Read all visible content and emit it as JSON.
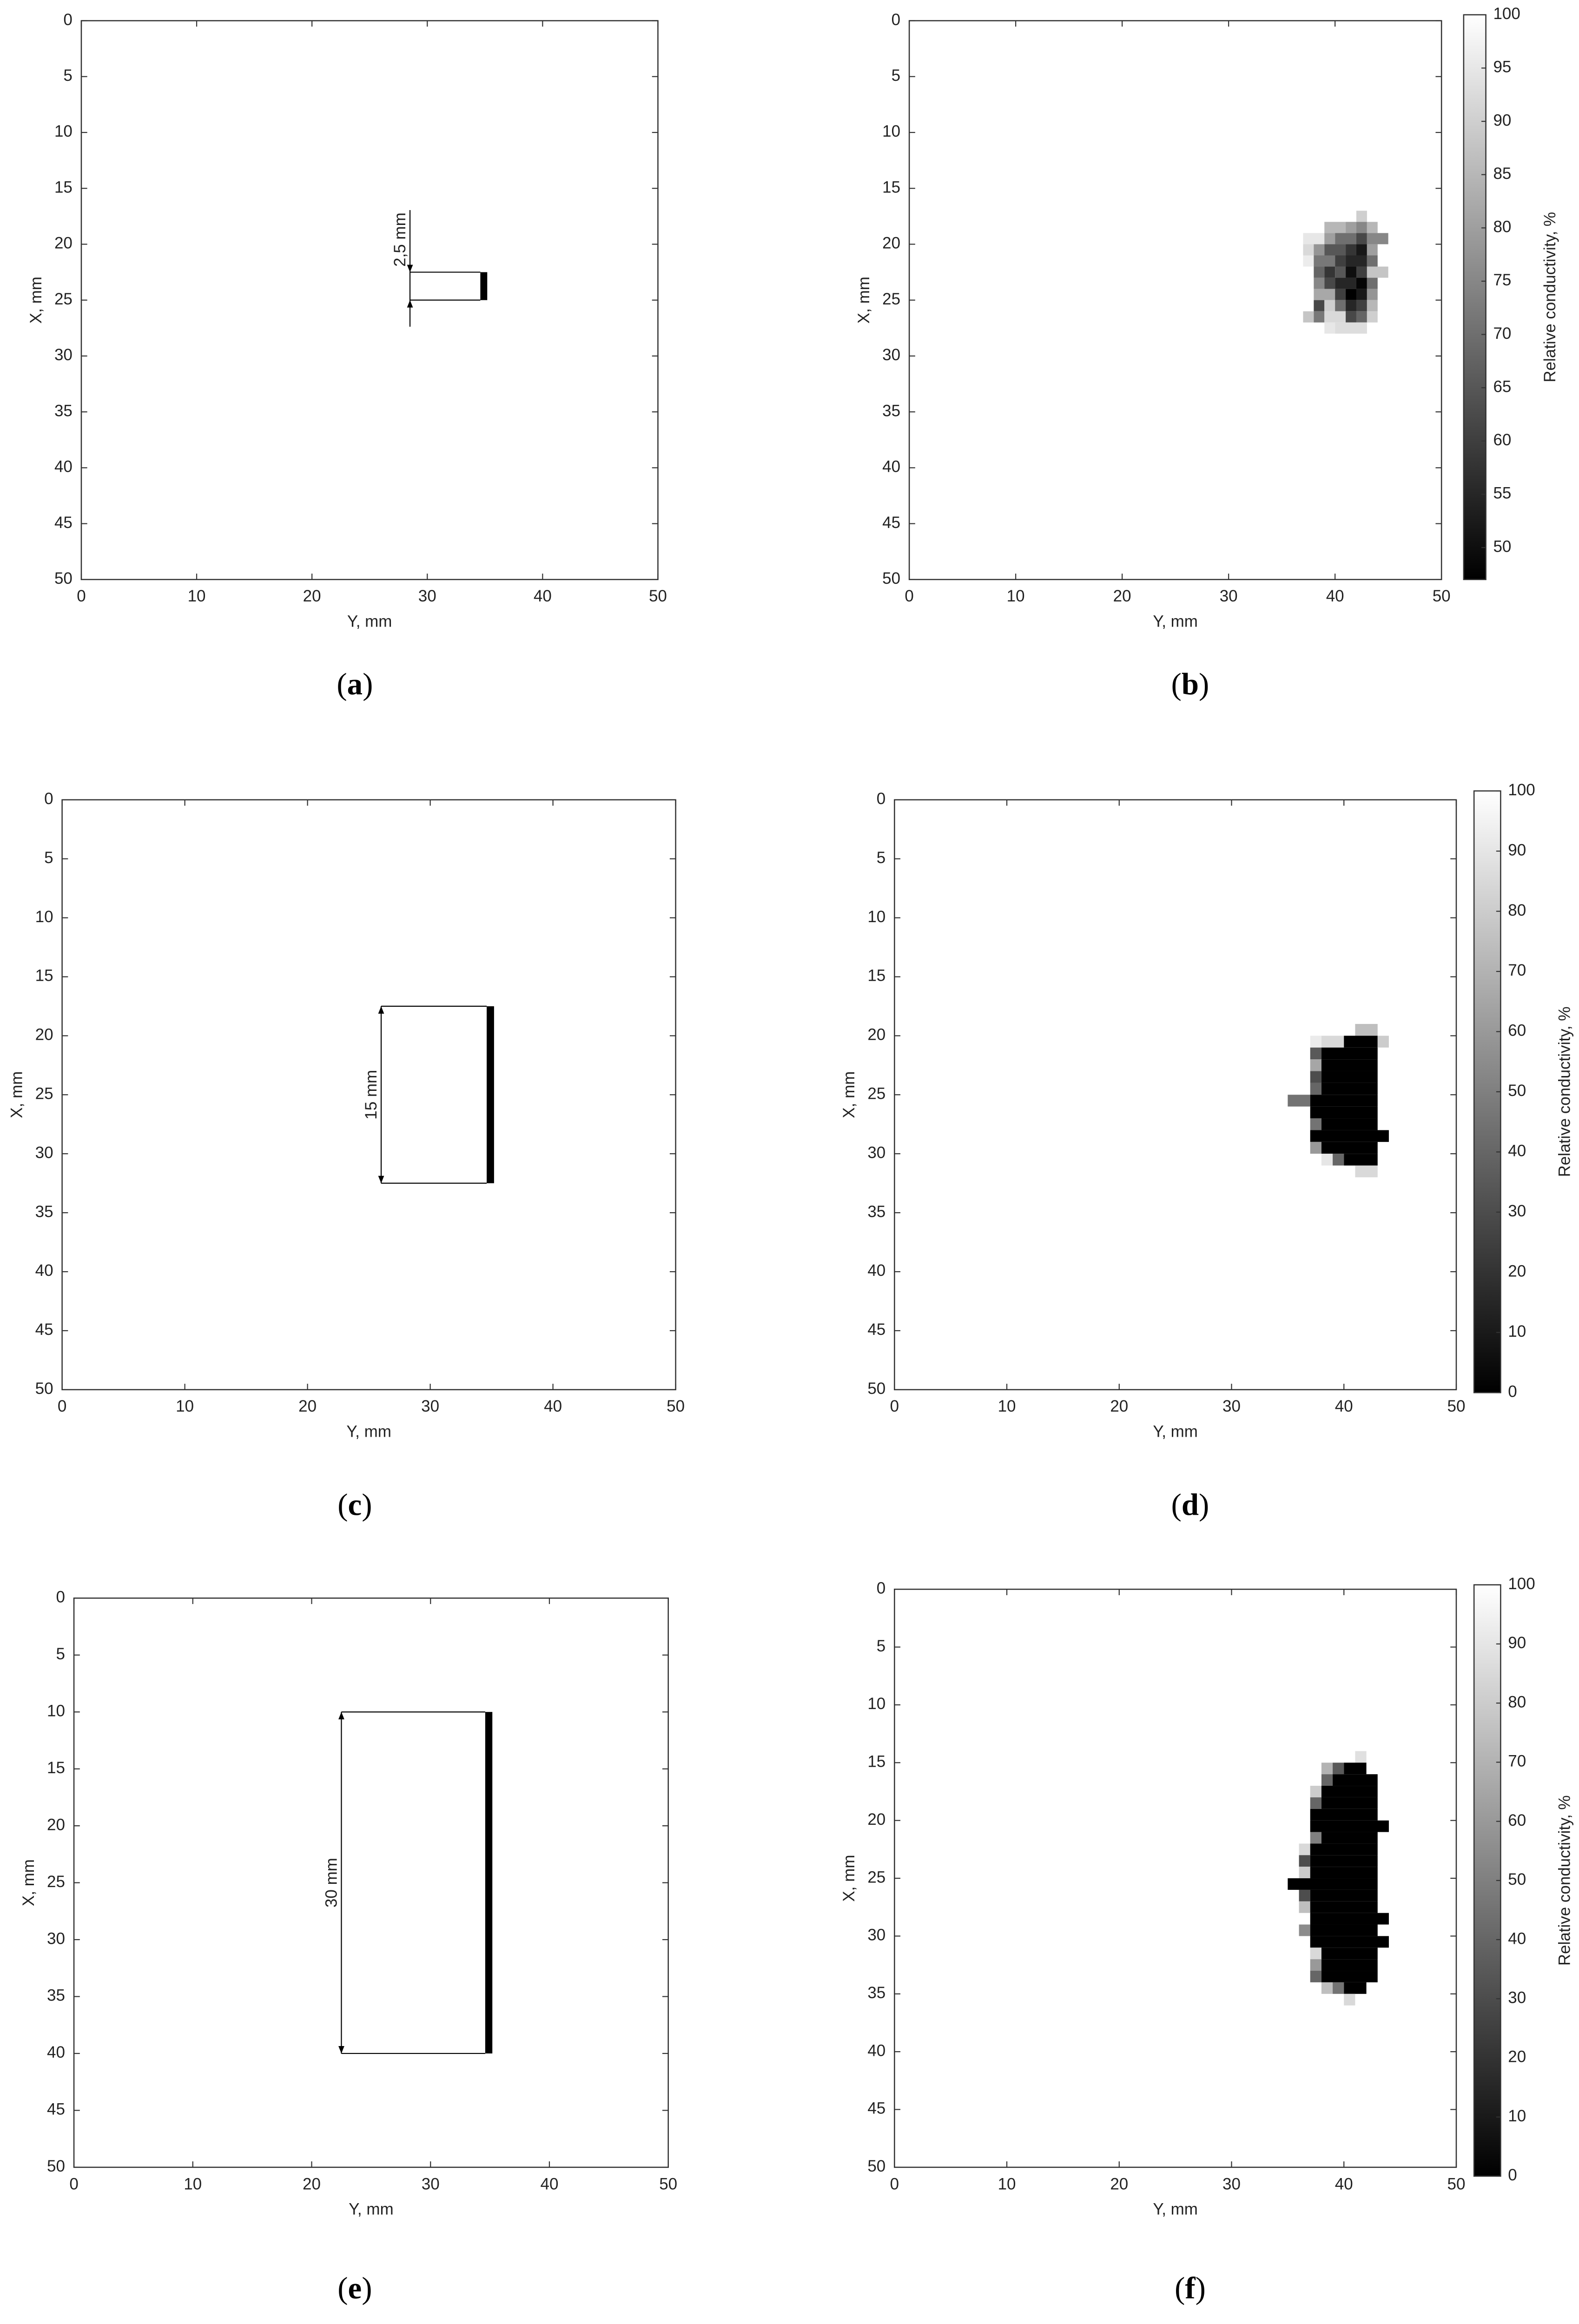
{
  "chart_data": [
    {
      "type": "crack",
      "xlabel": "Y, mm",
      "ylabel": "X, mm",
      "xlim": [
        0,
        50
      ],
      "xticks": [
        0,
        10,
        20,
        30,
        40,
        50
      ],
      "ylim": [
        0,
        50
      ],
      "yticks": [
        0,
        5,
        10,
        15,
        20,
        25,
        30,
        35,
        40,
        45,
        50
      ],
      "y_inverted": true,
      "crack": {
        "y0": 34.6,
        "y1": 35.2,
        "x0": 22.5,
        "x1": 25
      },
      "dimension_y": 28.5,
      "dimension_arrows": "outside",
      "annotation": "2,5 mm",
      "color": "#000000",
      "caption": "(a)"
    },
    {
      "type": "heatmap",
      "xlabel": "Y, mm",
      "ylabel": "X, mm",
      "xlim": [
        0,
        50
      ],
      "xticks": [
        0,
        10,
        20,
        30,
        40,
        50
      ],
      "ylim": [
        0,
        50
      ],
      "yticks": [
        0,
        5,
        10,
        15,
        20,
        25,
        30,
        35,
        40,
        45,
        50
      ],
      "y_inverted": true,
      "colorbar_label": "Relative conductivity, %",
      "clim": [
        47,
        100
      ],
      "cticks": [
        50,
        55,
        60,
        65,
        70,
        75,
        80,
        85,
        90,
        95,
        100
      ],
      "colormap": "gray",
      "runs": [
        [
          17,
          42,
          43,
          90
        ],
        [
          18,
          39,
          41,
          85
        ],
        [
          18,
          41,
          42,
          80
        ],
        [
          18,
          42,
          43,
          75
        ],
        [
          18,
          43,
          44,
          85
        ],
        [
          19,
          37,
          39,
          95
        ],
        [
          19,
          39,
          40,
          80
        ],
        [
          19,
          40,
          42,
          70
        ],
        [
          19,
          42,
          43,
          62
        ],
        [
          19,
          43,
          45,
          75
        ],
        [
          20,
          37,
          38,
          92
        ],
        [
          20,
          38,
          39,
          78
        ],
        [
          20,
          39,
          41,
          65
        ],
        [
          20,
          41,
          42,
          58
        ],
        [
          20,
          42,
          43,
          52
        ],
        [
          20,
          43,
          44,
          80
        ],
        [
          21,
          37,
          38,
          96
        ],
        [
          21,
          38,
          40,
          72
        ],
        [
          21,
          40,
          41,
          60
        ],
        [
          21,
          41,
          43,
          55
        ],
        [
          21,
          43,
          44,
          70
        ],
        [
          22,
          38,
          39,
          68
        ],
        [
          22,
          39,
          40,
          58
        ],
        [
          22,
          40,
          41,
          65
        ],
        [
          22,
          41,
          42,
          50
        ],
        [
          22,
          42,
          43,
          60
        ],
        [
          22,
          43,
          45,
          88
        ],
        [
          23,
          38,
          39,
          75
        ],
        [
          23,
          39,
          40,
          62
        ],
        [
          23,
          40,
          42,
          55
        ],
        [
          23,
          42,
          43,
          48
        ],
        [
          23,
          43,
          44,
          70
        ],
        [
          24,
          38,
          40,
          82
        ],
        [
          24,
          40,
          41,
          60
        ],
        [
          24,
          41,
          42,
          47
        ],
        [
          24,
          42,
          43,
          52
        ],
        [
          24,
          43,
          44,
          78
        ],
        [
          25,
          38,
          39,
          62
        ],
        [
          25,
          39,
          40,
          90
        ],
        [
          25,
          40,
          41,
          70
        ],
        [
          25,
          41,
          42,
          55
        ],
        [
          25,
          42,
          43,
          60
        ],
        [
          25,
          43,
          44,
          85
        ],
        [
          26,
          37,
          38,
          88
        ],
        [
          26,
          38,
          39,
          72
        ],
        [
          26,
          39,
          41,
          92
        ],
        [
          26,
          41,
          42,
          62
        ],
        [
          26,
          42,
          43,
          68
        ],
        [
          26,
          43,
          44,
          90
        ],
        [
          27,
          39,
          40,
          95
        ],
        [
          27,
          40,
          43,
          93
        ]
      ],
      "caption": "(b)"
    },
    {
      "type": "crack",
      "xlabel": "Y, mm",
      "ylabel": "X, mm",
      "xlim": [
        0,
        50
      ],
      "xticks": [
        0,
        10,
        20,
        30,
        40,
        50
      ],
      "ylim": [
        0,
        50
      ],
      "yticks": [
        0,
        5,
        10,
        15,
        20,
        25,
        30,
        35,
        40,
        45,
        50
      ],
      "y_inverted": true,
      "crack": {
        "y0": 34.6,
        "y1": 35.2,
        "x0": 17.5,
        "x1": 32.5
      },
      "dimension_y": 26,
      "dimension_arrows": "inside",
      "annotation": "15 mm",
      "color": "#000000",
      "caption": "(c)"
    },
    {
      "type": "heatmap",
      "xlabel": "Y, mm",
      "ylabel": "X, mm",
      "xlim": [
        0,
        50
      ],
      "xticks": [
        0,
        10,
        20,
        30,
        40,
        50
      ],
      "ylim": [
        0,
        50
      ],
      "yticks": [
        0,
        5,
        10,
        15,
        20,
        25,
        30,
        35,
        40,
        45,
        50
      ],
      "y_inverted": true,
      "colorbar_label": "Relative conductivity, %",
      "clim": [
        0,
        100
      ],
      "cticks": [
        0,
        10,
        20,
        30,
        40,
        50,
        60,
        70,
        80,
        90,
        100
      ],
      "colormap": "gray",
      "runs": [
        [
          19,
          41,
          43,
          75
        ],
        [
          20,
          37,
          38,
          92
        ],
        [
          20,
          38,
          40,
          85
        ],
        [
          20,
          40,
          43,
          0
        ],
        [
          20,
          43,
          44,
          80
        ],
        [
          21,
          37,
          38,
          35
        ],
        [
          21,
          38,
          43,
          0
        ],
        [
          22,
          37,
          38,
          65
        ],
        [
          22,
          38,
          43,
          0
        ],
        [
          23,
          37,
          38,
          30
        ],
        [
          23,
          38,
          43,
          0
        ],
        [
          24,
          37,
          38,
          40
        ],
        [
          24,
          38,
          43,
          0
        ],
        [
          25,
          35,
          37,
          45
        ],
        [
          25,
          37,
          43,
          0
        ],
        [
          26,
          37,
          43,
          0
        ],
        [
          27,
          37,
          38,
          45
        ],
        [
          27,
          38,
          43,
          0
        ],
        [
          28,
          37,
          44,
          0
        ],
        [
          29,
          37,
          38,
          60
        ],
        [
          29,
          38,
          43,
          0
        ],
        [
          30,
          38,
          39,
          90
        ],
        [
          30,
          39,
          40,
          40
        ],
        [
          30,
          40,
          43,
          0
        ],
        [
          31,
          41,
          43,
          85
        ]
      ],
      "caption": "(d)"
    },
    {
      "type": "crack",
      "xlabel": "Y, mm",
      "ylabel": "X, mm",
      "xlim": [
        0,
        50
      ],
      "xticks": [
        0,
        10,
        20,
        30,
        40,
        50
      ],
      "ylim": [
        0,
        50
      ],
      "yticks": [
        0,
        5,
        10,
        15,
        20,
        25,
        30,
        35,
        40,
        45,
        50
      ],
      "y_inverted": true,
      "crack": {
        "y0": 34.6,
        "y1": 35.2,
        "x0": 10,
        "x1": 40
      },
      "dimension_y": 22.5,
      "dimension_arrows": "inside",
      "annotation": "30 mm",
      "color": "#000000",
      "caption": "(e)"
    },
    {
      "type": "heatmap",
      "xlabel": "Y, mm",
      "ylabel": "X, mm",
      "xlim": [
        0,
        50
      ],
      "xticks": [
        0,
        10,
        20,
        30,
        40,
        50
      ],
      "ylim": [
        0,
        50
      ],
      "yticks": [
        0,
        5,
        10,
        15,
        20,
        25,
        30,
        35,
        40,
        45,
        50
      ],
      "y_inverted": true,
      "colorbar_label": "Relative conductivity, %",
      "clim": [
        0,
        100
      ],
      "cticks": [
        0,
        10,
        20,
        30,
        40,
        50,
        60,
        70,
        80,
        90,
        100
      ],
      "colormap": "gray",
      "runs": [
        [
          14,
          41,
          42,
          88
        ],
        [
          15,
          38,
          39,
          70
        ],
        [
          15,
          39,
          40,
          35
        ],
        [
          15,
          40,
          42,
          0
        ],
        [
          16,
          38,
          39,
          40
        ],
        [
          16,
          39,
          43,
          0
        ],
        [
          17,
          37,
          38,
          80
        ],
        [
          17,
          38,
          43,
          0
        ],
        [
          18,
          37,
          38,
          40
        ],
        [
          18,
          38,
          43,
          0
        ],
        [
          19,
          37,
          43,
          0
        ],
        [
          20,
          37,
          44,
          0
        ],
        [
          21,
          37,
          38,
          50
        ],
        [
          21,
          38,
          43,
          0
        ],
        [
          22,
          36,
          37,
          85
        ],
        [
          22,
          37,
          43,
          0
        ],
        [
          23,
          36,
          37,
          30
        ],
        [
          23,
          37,
          43,
          0
        ],
        [
          24,
          36,
          37,
          80
        ],
        [
          24,
          37,
          43,
          0
        ],
        [
          25,
          35,
          43,
          0
        ],
        [
          26,
          36,
          37,
          30
        ],
        [
          26,
          37,
          43,
          0
        ],
        [
          27,
          36,
          37,
          75
        ],
        [
          27,
          37,
          43,
          0
        ],
        [
          28,
          37,
          44,
          0
        ],
        [
          29,
          36,
          37,
          55
        ],
        [
          29,
          37,
          43,
          0
        ],
        [
          30,
          37,
          44,
          0
        ],
        [
          31,
          37,
          38,
          85
        ],
        [
          31,
          38,
          43,
          0
        ],
        [
          32,
          37,
          38,
          60
        ],
        [
          32,
          38,
          43,
          0
        ],
        [
          33,
          37,
          38,
          40
        ],
        [
          33,
          38,
          43,
          0
        ],
        [
          34,
          38,
          39,
          75
        ],
        [
          34,
          39,
          40,
          45
        ],
        [
          34,
          40,
          42,
          0
        ],
        [
          35,
          40,
          41,
          85
        ]
      ],
      "caption": "(f)"
    }
  ]
}
